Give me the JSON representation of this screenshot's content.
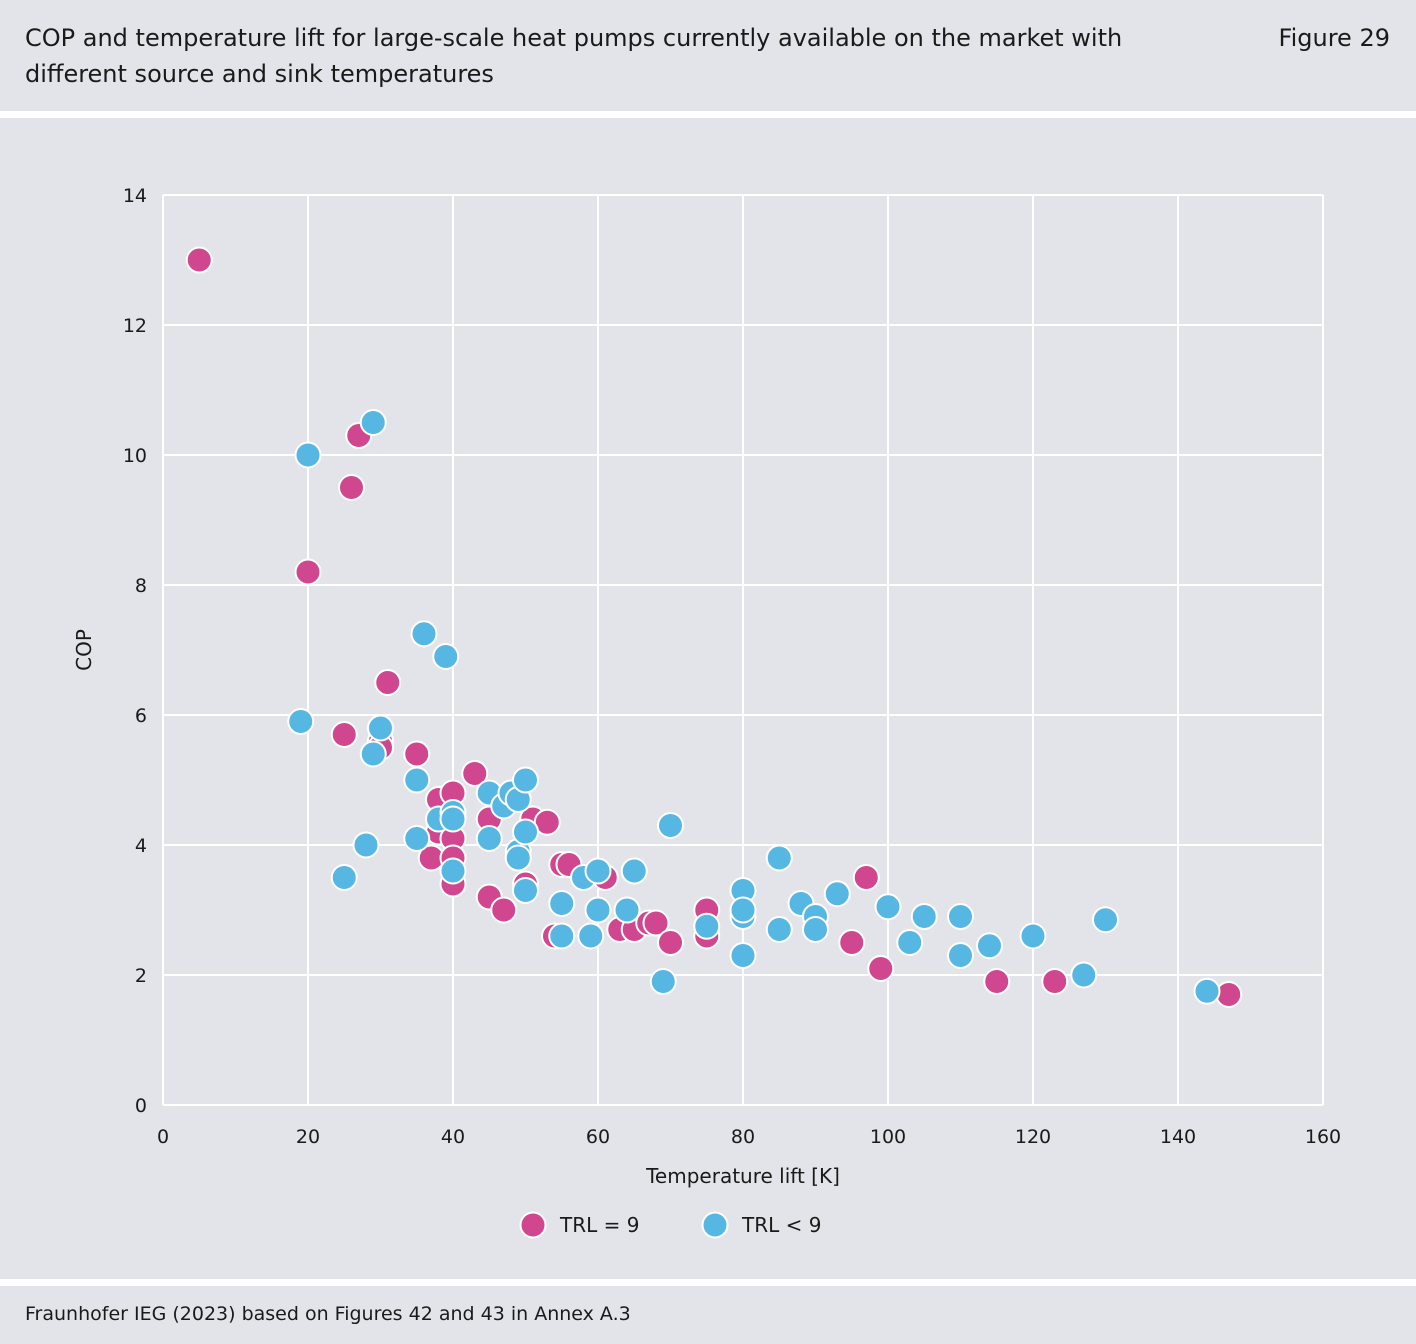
{
  "header": {
    "title": "COP and temperature lift for large-scale heat pumps currently available on the market with different source and sink temperatures",
    "figure_label": "Figure 29"
  },
  "footer": {
    "source": "Fraunhofer IEG (2023) based on Figures 42 and 43 in Annex A.3"
  },
  "colors": {
    "background": "#e3e4e9",
    "trl9": "#d0478f",
    "trl_lt9": "#57b7e3",
    "grid": "#ffffff"
  },
  "chart_data": {
    "type": "scatter",
    "xlabel": "Temperature lift [K]",
    "ylabel": "COP",
    "xlim": [
      0,
      160
    ],
    "ylim": [
      0,
      14
    ],
    "x_ticks": [
      "0",
      "20",
      "40",
      "60",
      "80",
      "100",
      "120",
      "140",
      "160"
    ],
    "y_ticks": [
      "0",
      "2",
      "4",
      "6",
      "8",
      "10",
      "12",
      "14"
    ],
    "grid": true,
    "legend_position": "bottom-center",
    "series": [
      {
        "name": "TRL = 9",
        "color": "#d0478f",
        "points": [
          [
            5,
            13.0
          ],
          [
            20,
            8.2
          ],
          [
            26,
            9.5
          ],
          [
            27,
            10.3
          ],
          [
            25,
            5.7
          ],
          [
            30,
            5.6
          ],
          [
            30,
            5.5
          ],
          [
            31,
            6.5
          ],
          [
            35,
            5.4
          ],
          [
            37,
            3.8
          ],
          [
            38,
            4.7
          ],
          [
            38,
            4.2
          ],
          [
            40,
            4.8
          ],
          [
            40,
            4.1
          ],
          [
            40,
            3.8
          ],
          [
            40,
            3.4
          ],
          [
            43,
            5.1
          ],
          [
            45,
            4.4
          ],
          [
            45,
            3.2
          ],
          [
            47,
            3.0
          ],
          [
            49,
            3.8
          ],
          [
            50,
            3.4
          ],
          [
            51,
            4.4
          ],
          [
            53,
            4.35
          ],
          [
            54,
            2.6
          ],
          [
            55,
            3.7
          ],
          [
            56,
            3.7
          ],
          [
            61,
            3.5
          ],
          [
            63,
            2.7
          ],
          [
            65,
            2.7
          ],
          [
            67,
            2.8
          ],
          [
            68,
            2.8
          ],
          [
            70,
            2.5
          ],
          [
            75,
            3.0
          ],
          [
            75,
            2.6
          ],
          [
            95,
            2.5
          ],
          [
            97,
            3.5
          ],
          [
            99,
            2.1
          ],
          [
            115,
            1.9
          ],
          [
            123,
            1.9
          ],
          [
            147,
            1.7
          ]
        ]
      },
      {
        "name": "TRL < 9",
        "color": "#57b7e3",
        "points": [
          [
            19,
            5.9
          ],
          [
            20,
            10.0
          ],
          [
            25,
            3.5
          ],
          [
            28,
            4.0
          ],
          [
            29,
            10.5
          ],
          [
            29,
            5.4
          ],
          [
            30,
            5.8
          ],
          [
            35,
            5.0
          ],
          [
            35,
            4.1
          ],
          [
            36,
            7.25
          ],
          [
            38,
            4.4
          ],
          [
            39,
            6.9
          ],
          [
            40,
            4.5
          ],
          [
            40,
            4.4
          ],
          [
            40,
            3.6
          ],
          [
            45,
            4.8
          ],
          [
            45,
            4.1
          ],
          [
            47,
            4.6
          ],
          [
            48,
            4.8
          ],
          [
            49,
            4.7
          ],
          [
            49,
            3.9
          ],
          [
            49,
            3.8
          ],
          [
            50,
            5.0
          ],
          [
            50,
            4.2
          ],
          [
            50,
            3.3
          ],
          [
            55,
            3.1
          ],
          [
            55,
            2.6
          ],
          [
            58,
            3.5
          ],
          [
            59,
            2.6
          ],
          [
            60,
            3.6
          ],
          [
            60,
            3.0
          ],
          [
            64,
            3.0
          ],
          [
            65,
            3.6
          ],
          [
            69,
            1.9
          ],
          [
            70,
            4.3
          ],
          [
            75,
            2.75
          ],
          [
            80,
            3.3
          ],
          [
            80,
            2.9
          ],
          [
            80,
            3.0
          ],
          [
            80,
            2.3
          ],
          [
            85,
            3.8
          ],
          [
            85,
            2.7
          ],
          [
            88,
            3.1
          ],
          [
            90,
            2.9
          ],
          [
            90,
            2.7
          ],
          [
            93,
            3.25
          ],
          [
            100,
            3.05
          ],
          [
            103,
            2.5
          ],
          [
            105,
            2.9
          ],
          [
            110,
            2.9
          ],
          [
            110,
            2.3
          ],
          [
            114,
            2.45
          ],
          [
            120,
            2.6
          ],
          [
            127,
            2.0
          ],
          [
            130,
            2.85
          ],
          [
            144,
            1.75
          ]
        ]
      }
    ]
  }
}
